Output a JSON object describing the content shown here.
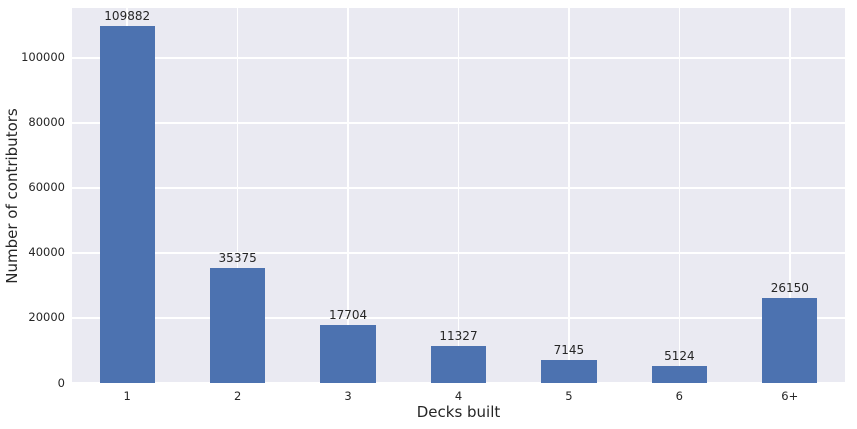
{
  "chart_data": {
    "type": "bar",
    "title": "",
    "xlabel": "Decks built",
    "ylabel": "Number of contributors",
    "categories": [
      "1",
      "2",
      "3",
      "4",
      "5",
      "6",
      "6+"
    ],
    "values": [
      109882,
      35375,
      17704,
      11327,
      7145,
      5124,
      26150
    ],
    "value_labels": [
      "109882",
      "35375",
      "17704",
      "11327",
      "7145",
      "5124",
      "26150"
    ],
    "yticks": [
      0,
      20000,
      40000,
      60000,
      80000,
      100000
    ],
    "ytick_labels": [
      "0",
      "20000",
      "40000",
      "60000",
      "80000",
      "100000"
    ],
    "ylim": [
      0,
      115376
    ],
    "grid": true,
    "legend": false,
    "colors": {
      "bar": "#4C72B0",
      "plot_background": "#EAEAF2",
      "gridline": "#FFFFFF",
      "text": "#262626",
      "figure_background": "#FFFFFF"
    }
  }
}
